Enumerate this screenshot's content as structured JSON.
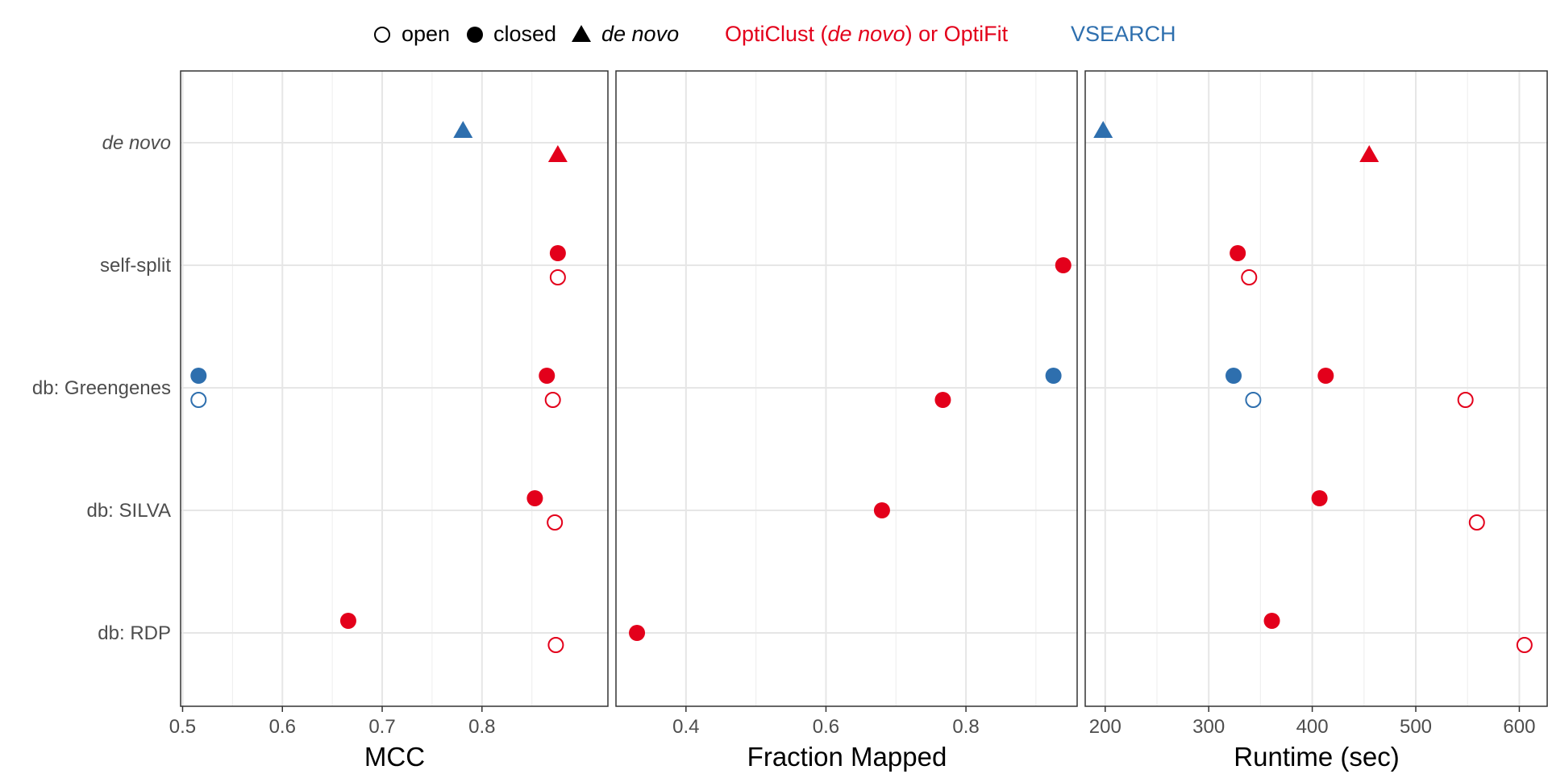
{
  "legend": {
    "shapes": [
      {
        "key": "open",
        "label": "open"
      },
      {
        "key": "closed",
        "label": "closed"
      },
      {
        "key": "denovo",
        "label": "de novo"
      }
    ],
    "methods": [
      {
        "key": "opti",
        "parts": [
          "OptiClust (",
          "de novo",
          ") or OptiFit"
        ],
        "color": "#e3001b"
      },
      {
        "key": "vsearch",
        "label": "VSEARCH",
        "color": "#2e6fae"
      }
    ]
  },
  "colors": {
    "opti": "#e3001b",
    "vsearch": "#2e6fae",
    "grid": "#e6e6e6",
    "border": "#333333"
  },
  "chart_data": {
    "type": "scatter",
    "categories": [
      "de novo",
      "self-split",
      "db: Greengenes",
      "db: SILVA",
      "db: RDP"
    ],
    "panels": [
      {
        "key": "mcc",
        "xlabel": "MCC",
        "xlim": [
          0.498,
          0.927
        ],
        "ticks": [
          0.5,
          0.6,
          0.7,
          0.8
        ],
        "tick_labels": [
          "0.5",
          "0.6",
          "0.7",
          "0.8"
        ],
        "points": [
          {
            "category": "de novo",
            "method": "vsearch",
            "shape": "denovo",
            "x": 0.781
          },
          {
            "category": "de novo",
            "method": "opti",
            "shape": "denovo",
            "x": 0.876
          },
          {
            "category": "self-split",
            "method": "opti",
            "shape": "closed",
            "x": 0.876
          },
          {
            "category": "self-split",
            "method": "opti",
            "shape": "open",
            "x": 0.876
          },
          {
            "category": "db: Greengenes",
            "method": "vsearch",
            "shape": "closed",
            "x": 0.516
          },
          {
            "category": "db: Greengenes",
            "method": "vsearch",
            "shape": "open",
            "x": 0.516
          },
          {
            "category": "db: Greengenes",
            "method": "opti",
            "shape": "closed",
            "x": 0.865
          },
          {
            "category": "db: Greengenes",
            "method": "opti",
            "shape": "open",
            "x": 0.871
          },
          {
            "category": "db: SILVA",
            "method": "opti",
            "shape": "closed",
            "x": 0.853
          },
          {
            "category": "db: SILVA",
            "method": "opti",
            "shape": "open",
            "x": 0.873
          },
          {
            "category": "db: RDP",
            "method": "opti",
            "shape": "closed",
            "x": 0.666
          },
          {
            "category": "db: RDP",
            "method": "opti",
            "shape": "open",
            "x": 0.874
          }
        ]
      },
      {
        "key": "fraction",
        "xlabel": "Fraction Mapped",
        "xlim": [
          0.3,
          0.96
        ],
        "ticks": [
          0.4,
          0.6,
          0.8
        ],
        "tick_labels": [
          "0.4",
          "0.6",
          "0.8"
        ],
        "points": [
          {
            "category": "self-split",
            "method": "opti",
            "shape": "closed",
            "x": 0.939
          },
          {
            "category": "db: Greengenes",
            "method": "vsearch",
            "shape": "closed",
            "x": 0.925
          },
          {
            "category": "db: Greengenes",
            "method": "opti",
            "shape": "closed",
            "x": 0.767
          },
          {
            "category": "db: SILVA",
            "method": "opti",
            "shape": "closed",
            "x": 0.68
          },
          {
            "category": "db: RDP",
            "method": "opti",
            "shape": "closed",
            "x": 0.33
          }
        ]
      },
      {
        "key": "runtime",
        "xlabel": "Runtime (sec)",
        "xlim": [
          180.7,
          627.7
        ],
        "ticks": [
          200,
          300,
          400,
          500,
          600
        ],
        "tick_labels": [
          "200",
          "300",
          "400",
          "500",
          "600"
        ],
        "points": [
          {
            "category": "de novo",
            "method": "vsearch",
            "shape": "denovo",
            "x": 198
          },
          {
            "category": "de novo",
            "method": "opti",
            "shape": "denovo",
            "x": 455
          },
          {
            "category": "self-split",
            "method": "opti",
            "shape": "closed",
            "x": 328
          },
          {
            "category": "self-split",
            "method": "opti",
            "shape": "open",
            "x": 339
          },
          {
            "category": "db: Greengenes",
            "method": "vsearch",
            "shape": "closed",
            "x": 324
          },
          {
            "category": "db: Greengenes",
            "method": "vsearch",
            "shape": "open",
            "x": 343
          },
          {
            "category": "db: Greengenes",
            "method": "opti",
            "shape": "closed",
            "x": 413
          },
          {
            "category": "db: Greengenes",
            "method": "opti",
            "shape": "open",
            "x": 548
          },
          {
            "category": "db: SILVA",
            "method": "opti",
            "shape": "closed",
            "x": 407
          },
          {
            "category": "db: SILVA",
            "method": "opti",
            "shape": "open",
            "x": 559
          },
          {
            "category": "db: RDP",
            "method": "opti",
            "shape": "closed",
            "x": 361
          },
          {
            "category": "db: RDP",
            "method": "opti",
            "shape": "open",
            "x": 605
          }
        ]
      }
    ]
  }
}
